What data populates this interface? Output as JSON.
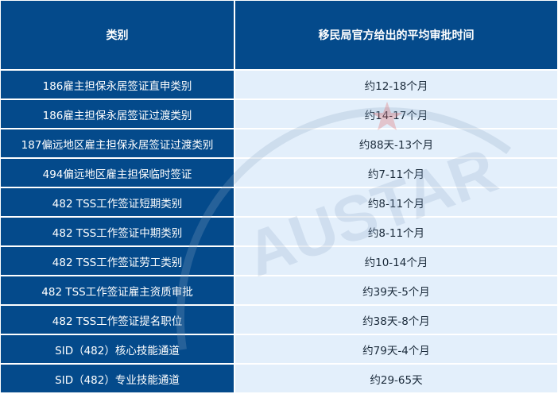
{
  "header": {
    "category": "类别",
    "time": "移民局官方给出的平均审批时间"
  },
  "rows": [
    {
      "category": "186雇主担保永居签证直申类别",
      "time": "约12-18个月"
    },
    {
      "category": "186雇主担保永居签证过渡类别",
      "time": "约14-17个月"
    },
    {
      "category": "187偏远地区雇主担保永居签证过渡类别",
      "time": "约88天-13个月"
    },
    {
      "category": "494偏远地区雇主担保临时签证",
      "time": "约7-11个月"
    },
    {
      "category": "482 TSS工作签证短期类别",
      "time": "约8-11个月"
    },
    {
      "category": "482 TSS工作签证中期类别",
      "time": "约8-11个月"
    },
    {
      "category": "482 TSS工作签证劳工类别",
      "time": "约10-14个月"
    },
    {
      "category": "482 TSS工作签证雇主资质审批",
      "time": "约39天-5个月"
    },
    {
      "category": "482 TSS工作签证提名职位",
      "time": "约38天-8个月"
    },
    {
      "category": "SID（482）核心技能通道",
      "time": "约79天-4个月"
    },
    {
      "category": "SID（482）专业技能通道",
      "time": "约29-65天"
    }
  ],
  "watermark": {
    "text": "AUSTAR",
    "color": "#8aa6c4"
  },
  "colors": {
    "header_bg": "#044a8b",
    "category_bg": "#044a8b",
    "time_bg": "#e3effb"
  }
}
